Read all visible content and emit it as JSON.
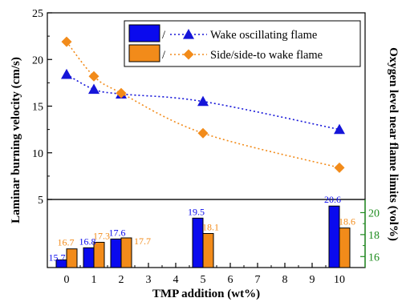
{
  "chart_data": [
    {
      "type": "line",
      "panel": "top",
      "x": [
        0,
        1,
        2,
        5,
        10
      ],
      "series": [
        {
          "name": "Wake oscillating flame",
          "legend_prefix": "/",
          "marker": "triangle",
          "line_style": "dotted",
          "color": "#1515d9",
          "values": [
            18.4,
            16.8,
            16.3,
            15.5,
            12.5
          ]
        },
        {
          "name": "Side/side-to wake flame",
          "legend_prefix": "/",
          "marker": "diamond",
          "line_style": "dotted",
          "color": "#f28b1a",
          "values": [
            21.9,
            18.2,
            16.4,
            12.1,
            8.4
          ]
        }
      ],
      "ylabel": "Laminar burning velocity (cm/s)",
      "ylim": [
        5,
        25
      ],
      "yticks": [
        "5",
        "10",
        "15",
        "20",
        "25"
      ],
      "grid": false,
      "legend_position": "top-right"
    },
    {
      "type": "bar",
      "panel": "bottom",
      "x": [
        0,
        1,
        2,
        5,
        10
      ],
      "series": [
        {
          "name": "Wake oscillating flame",
          "color": "#0a0aee",
          "values": [
            15.7,
            16.8,
            17.6,
            19.5,
            20.6
          ],
          "labels": [
            "15.7",
            "16.8",
            "17.6",
            "19.5",
            "20.6"
          ]
        },
        {
          "name": "Side/side-to wake flame",
          "color": "#f28b1a",
          "values": [
            16.7,
            17.3,
            17.7,
            18.1,
            18.6
          ],
          "labels": [
            "16.7",
            "17.3",
            "17.7",
            "18.1",
            "18.6"
          ]
        }
      ],
      "xlabel": "TMP addition (wt%)",
      "xticks": [
        "0",
        "1",
        "2",
        "3",
        "4",
        "5",
        "6",
        "7",
        "8",
        "9",
        "10"
      ],
      "ylabel": "Oxygen level near flame limits (vol%)",
      "ylabel_color": "#1e8c1e",
      "ylim": [
        15,
        21.2
      ],
      "yticks": [
        "16",
        "18",
        "20"
      ],
      "grid": false
    }
  ]
}
